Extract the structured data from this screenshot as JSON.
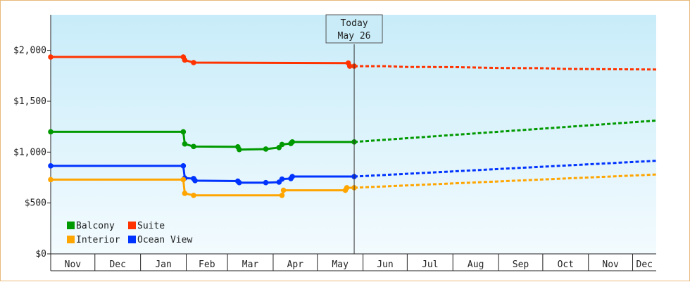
{
  "chart_data": {
    "type": "line",
    "today": {
      "label": "Today",
      "date_label": "May 26",
      "date": "2025-05-26"
    },
    "y_ticks": [
      {
        "value": 0,
        "label": "$0"
      },
      {
        "value": 500,
        "label": "$500"
      },
      {
        "value": 1000,
        "label": "$1,000"
      },
      {
        "value": 1500,
        "label": "$1,500"
      },
      {
        "value": 2000,
        "label": "$2,000"
      }
    ],
    "ylim": [
      0,
      2350
    ],
    "xlim": [
      "2024-11-01",
      "2025-12-17"
    ],
    "x_months": [
      {
        "label": "Nov",
        "start": "2024-11-01"
      },
      {
        "label": "Dec",
        "start": "2024-12-01"
      },
      {
        "label": "Jan",
        "start": "2025-01-01"
      },
      {
        "label": "Feb",
        "start": "2025-02-01"
      },
      {
        "label": "Mar",
        "start": "2025-03-01"
      },
      {
        "label": "Apr",
        "start": "2025-04-01"
      },
      {
        "label": "May",
        "start": "2025-05-01"
      },
      {
        "label": "Jun",
        "start": "2025-06-01"
      },
      {
        "label": "Jul",
        "start": "2025-07-01"
      },
      {
        "label": "Aug",
        "start": "2025-08-01"
      },
      {
        "label": "Sep",
        "start": "2025-09-01"
      },
      {
        "label": "Oct",
        "start": "2025-10-01"
      },
      {
        "label": "Nov",
        "start": "2025-11-01"
      },
      {
        "label": "Dec",
        "start": "2025-12-01"
      }
    ],
    "legend": {
      "placement": "bottom-left"
    },
    "series": [
      {
        "name": "Suite",
        "color": "#ff3300",
        "points": [
          {
            "x": "2024-11-01",
            "y": 1935
          },
          {
            "x": "2025-01-30",
            "y": 1935
          },
          {
            "x": "2025-01-31",
            "y": 1905
          },
          {
            "x": "2025-02-06",
            "y": 1880
          },
          {
            "x": "2025-05-22",
            "y": 1875
          },
          {
            "x": "2025-05-23",
            "y": 1845
          },
          {
            "x": "2025-05-26",
            "y": 1845
          }
        ],
        "forecast": [
          {
            "x": "2025-05-26",
            "y": 1845
          },
          {
            "x": "2025-06-15",
            "y": 1845
          },
          {
            "x": "2025-07-01",
            "y": 1837
          },
          {
            "x": "2025-08-01",
            "y": 1836
          },
          {
            "x": "2025-09-01",
            "y": 1827
          },
          {
            "x": "2025-10-01",
            "y": 1825
          },
          {
            "x": "2025-10-15",
            "y": 1818
          },
          {
            "x": "2025-11-15",
            "y": 1815
          },
          {
            "x": "2025-12-17",
            "y": 1812
          }
        ]
      },
      {
        "name": "Balcony",
        "color": "#009900",
        "points": [
          {
            "x": "2024-11-01",
            "y": 1200
          },
          {
            "x": "2025-01-30",
            "y": 1200
          },
          {
            "x": "2025-01-31",
            "y": 1080
          },
          {
            "x": "2025-02-06",
            "y": 1055
          },
          {
            "x": "2025-03-08",
            "y": 1052
          },
          {
            "x": "2025-03-09",
            "y": 1025
          },
          {
            "x": "2025-03-27",
            "y": 1030
          },
          {
            "x": "2025-04-05",
            "y": 1045
          },
          {
            "x": "2025-04-07",
            "y": 1075
          },
          {
            "x": "2025-04-13",
            "y": 1085
          },
          {
            "x": "2025-04-14",
            "y": 1100
          },
          {
            "x": "2025-05-26",
            "y": 1100
          }
        ],
        "forecast": [
          {
            "x": "2025-05-26",
            "y": 1100
          },
          {
            "x": "2025-12-17",
            "y": 1310
          }
        ]
      },
      {
        "name": "Ocean View",
        "color": "#0033ff",
        "points": [
          {
            "x": "2024-11-01",
            "y": 865
          },
          {
            "x": "2025-01-30",
            "y": 865
          },
          {
            "x": "2025-01-31",
            "y": 745
          },
          {
            "x": "2025-02-06",
            "y": 740
          },
          {
            "x": "2025-02-07",
            "y": 720
          },
          {
            "x": "2025-03-08",
            "y": 715
          },
          {
            "x": "2025-03-09",
            "y": 700
          },
          {
            "x": "2025-03-27",
            "y": 700
          },
          {
            "x": "2025-04-05",
            "y": 705
          },
          {
            "x": "2025-04-07",
            "y": 735
          },
          {
            "x": "2025-04-13",
            "y": 740
          },
          {
            "x": "2025-04-14",
            "y": 760
          },
          {
            "x": "2025-05-26",
            "y": 760
          }
        ],
        "forecast": [
          {
            "x": "2025-05-26",
            "y": 760
          },
          {
            "x": "2025-12-17",
            "y": 915
          }
        ]
      },
      {
        "name": "Interior",
        "color": "#ffa500",
        "points": [
          {
            "x": "2024-11-01",
            "y": 730
          },
          {
            "x": "2025-01-30",
            "y": 730
          },
          {
            "x": "2025-01-31",
            "y": 595
          },
          {
            "x": "2025-02-06",
            "y": 575
          },
          {
            "x": "2025-04-07",
            "y": 575
          },
          {
            "x": "2025-04-08",
            "y": 625
          },
          {
            "x": "2025-05-20",
            "y": 625
          },
          {
            "x": "2025-05-21",
            "y": 650
          },
          {
            "x": "2025-05-26",
            "y": 650
          }
        ],
        "forecast": [
          {
            "x": "2025-05-26",
            "y": 650
          },
          {
            "x": "2025-12-17",
            "y": 780
          }
        ]
      }
    ]
  },
  "legend_items": [
    {
      "name": "Balcony",
      "color": "#009900"
    },
    {
      "name": "Suite",
      "color": "#ff3300"
    },
    {
      "name": "Interior",
      "color": "#ffa500"
    },
    {
      "name": "Ocean View",
      "color": "#0033ff"
    }
  ]
}
